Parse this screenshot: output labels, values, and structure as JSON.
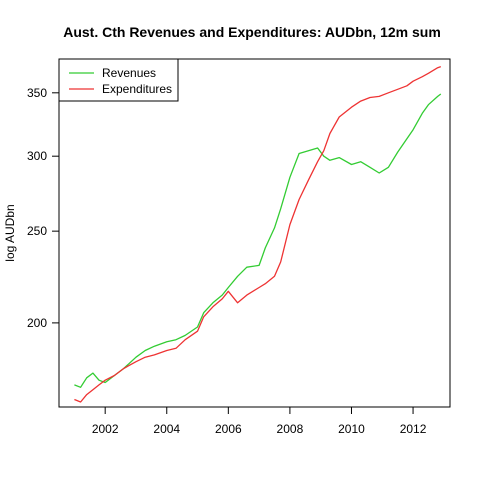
{
  "chart_data": {
    "type": "line",
    "title": "Aust. Cth Revenues and Expenditures: AUDbn, 12m sum",
    "xlabel": "",
    "ylabel": "log AUDbn",
    "log_y": true,
    "xlim": [
      2000.5,
      2013.2
    ],
    "ylim": [
      163,
      380
    ],
    "xticks": [
      2002,
      2004,
      2006,
      2008,
      2010,
      2012
    ],
    "yticks": [
      200,
      250,
      300,
      350
    ],
    "legend_position": "top-left",
    "grid": false,
    "series": [
      {
        "name": "Revenues",
        "color": "#33cc33",
        "x": [
          2001.0,
          2001.2,
          2001.4,
          2001.6,
          2001.8,
          2002.0,
          2002.3,
          2002.6,
          2003.0,
          2003.3,
          2003.6,
          2004.0,
          2004.3,
          2004.6,
          2005.0,
          2005.2,
          2005.5,
          2005.8,
          2006.0,
          2006.3,
          2006.6,
          2007.0,
          2007.2,
          2007.5,
          2007.7,
          2008.0,
          2008.3,
          2008.6,
          2008.9,
          2009.1,
          2009.3,
          2009.6,
          2010.0,
          2010.3,
          2010.6,
          2010.9,
          2011.2,
          2011.5,
          2011.8,
          2012.0,
          2012.3,
          2012.5,
          2012.8,
          2012.9
        ],
        "y": [
          172,
          171,
          175,
          177,
          174,
          173,
          176,
          179,
          184,
          187,
          189,
          191,
          192,
          194,
          198,
          205,
          210,
          214,
          218,
          224,
          229,
          230,
          240,
          252,
          264,
          285,
          302,
          304,
          306,
          300,
          297,
          299,
          294,
          296,
          292,
          288,
          292,
          303,
          313,
          320,
          333,
          340,
          347,
          349
        ]
      },
      {
        "name": "Expenditures",
        "color": "#ee3333",
        "x": [
          2001.0,
          2001.2,
          2001.4,
          2001.6,
          2001.8,
          2002.0,
          2002.3,
          2002.6,
          2003.0,
          2003.3,
          2003.6,
          2004.0,
          2004.3,
          2004.6,
          2005.0,
          2005.2,
          2005.5,
          2005.8,
          2006.0,
          2006.3,
          2006.6,
          2007.0,
          2007.2,
          2007.5,
          2007.7,
          2008.0,
          2008.3,
          2008.6,
          2008.9,
          2009.1,
          2009.3,
          2009.6,
          2010.0,
          2010.3,
          2010.6,
          2010.9,
          2011.2,
          2011.5,
          2011.8,
          2012.0,
          2012.3,
          2012.5,
          2012.8,
          2012.9
        ],
        "y": [
          166,
          165,
          168,
          170,
          172,
          174,
          176,
          179,
          182,
          184,
          185,
          187,
          188,
          192,
          196,
          203,
          208,
          212,
          216,
          210,
          214,
          218,
          220,
          224,
          232,
          254,
          270,
          283,
          296,
          304,
          317,
          330,
          338,
          343,
          346,
          347,
          350,
          353,
          356,
          360,
          364,
          367,
          372,
          373
        ]
      }
    ]
  }
}
